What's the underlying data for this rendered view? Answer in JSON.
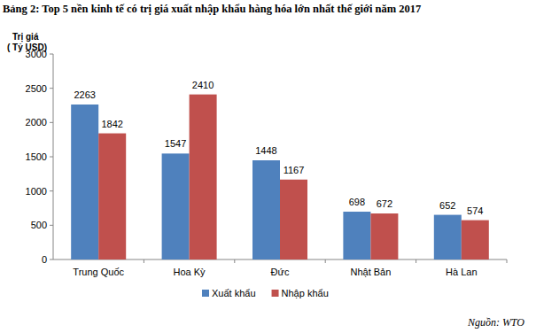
{
  "chart_data": {
    "type": "bar",
    "title": "Bảng 2: Top 5 nền kinh tế có trị giá xuất nhập khẩu hàng hóa lớn nhất thế giới năm 2017",
    "y_label": "Trị giá\n( Tỷ USD)",
    "source": "Nguồn: WTO",
    "categories": [
      "Trung Quốc",
      "Hoa Kỳ",
      "Đức",
      "Nhật Bản",
      "Hà Lan"
    ],
    "series": [
      {
        "name": "Xuất khẩu",
        "color": "#4f81bd",
        "values": [
          2263,
          1547,
          1448,
          698,
          652
        ]
      },
      {
        "name": "Nhập khẩu",
        "color": "#c0504d",
        "values": [
          1842,
          2410,
          1167,
          672,
          574
        ]
      }
    ],
    "ylim": [
      0,
      3000
    ],
    "yticks": [
      0,
      500,
      1000,
      1500,
      2000,
      2500,
      3000
    ],
    "grid": false,
    "legend": "bottom",
    "data_labels": true
  }
}
